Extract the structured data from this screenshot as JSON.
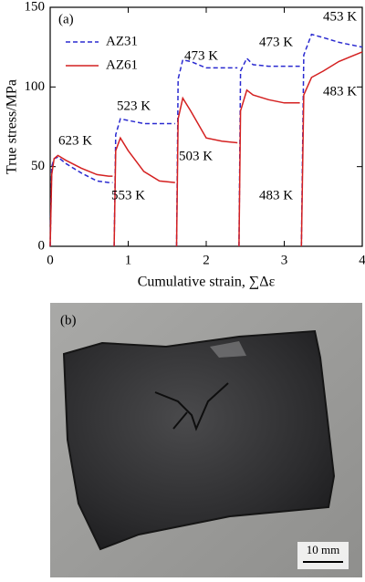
{
  "chart_data": {
    "type": "line",
    "panel_label": "(a)",
    "x_label": "Cumulative strain, ∑Δε",
    "y_label": "True stress/MPa",
    "xlim": [
      0,
      4
    ],
    "xticks": [
      0,
      1,
      2,
      3,
      4
    ],
    "ylim": [
      0,
      150
    ],
    "yticks": [
      0,
      50,
      100,
      150
    ],
    "legend": "upper left",
    "series": [
      {
        "name": "AZ31",
        "color": "#2a2ad0",
        "dash": true,
        "x": [
          0,
          0.02,
          0.05,
          0.1,
          0.2,
          0.4,
          0.6,
          0.75,
          0.8,
          0.81,
          0.82,
          0.84,
          0.9,
          1.0,
          1.2,
          1.4,
          1.6,
          1.61,
          1.62,
          1.64,
          1.7,
          1.8,
          2.0,
          2.2,
          2.4,
          2.41,
          2.42,
          2.44,
          2.52,
          2.6,
          2.8,
          3.0,
          3.2,
          3.21,
          3.22,
          3.25,
          3.35,
          3.5,
          3.7,
          4.0
        ],
        "values": [
          0,
          50,
          55,
          56,
          52,
          46,
          41,
          40,
          40,
          null,
          0,
          70,
          80,
          79,
          77,
          77,
          77,
          null,
          0,
          105,
          117,
          116,
          112,
          112,
          112,
          null,
          0,
          110,
          118,
          114,
          113,
          113,
          113,
          null,
          0,
          120,
          133,
          131,
          128,
          125
        ]
      },
      {
        "name": "AZ61",
        "color": "#d42020",
        "dash": false,
        "x": [
          0,
          0.02,
          0.05,
          0.1,
          0.2,
          0.4,
          0.6,
          0.75,
          0.8,
          0.81,
          0.82,
          0.84,
          0.9,
          1.0,
          1.2,
          1.4,
          1.6,
          1.61,
          1.62,
          1.64,
          1.7,
          1.8,
          2.0,
          2.2,
          2.4,
          2.41,
          2.42,
          2.44,
          2.52,
          2.6,
          2.8,
          3.0,
          3.2,
          3.21,
          3.22,
          3.25,
          3.35,
          3.5,
          3.7,
          4.0
        ],
        "values": [
          0,
          45,
          55,
          57,
          54,
          49,
          45,
          44,
          44,
          null,
          0,
          60,
          68,
          60,
          47,
          41,
          40,
          null,
          0,
          80,
          93,
          85,
          68,
          66,
          65,
          null,
          0,
          85,
          98,
          95,
          92,
          90,
          90,
          null,
          0,
          95,
          106,
          110,
          116,
          122
        ]
      }
    ],
    "annotations": [
      "623 K",
      "553 K",
      "523 K",
      "473 K",
      "503 K",
      "473 K",
      "483 K",
      "453 K",
      "483 K"
    ]
  },
  "photo": {
    "panel_label": "(b)",
    "scale_bar": "10 mm"
  }
}
